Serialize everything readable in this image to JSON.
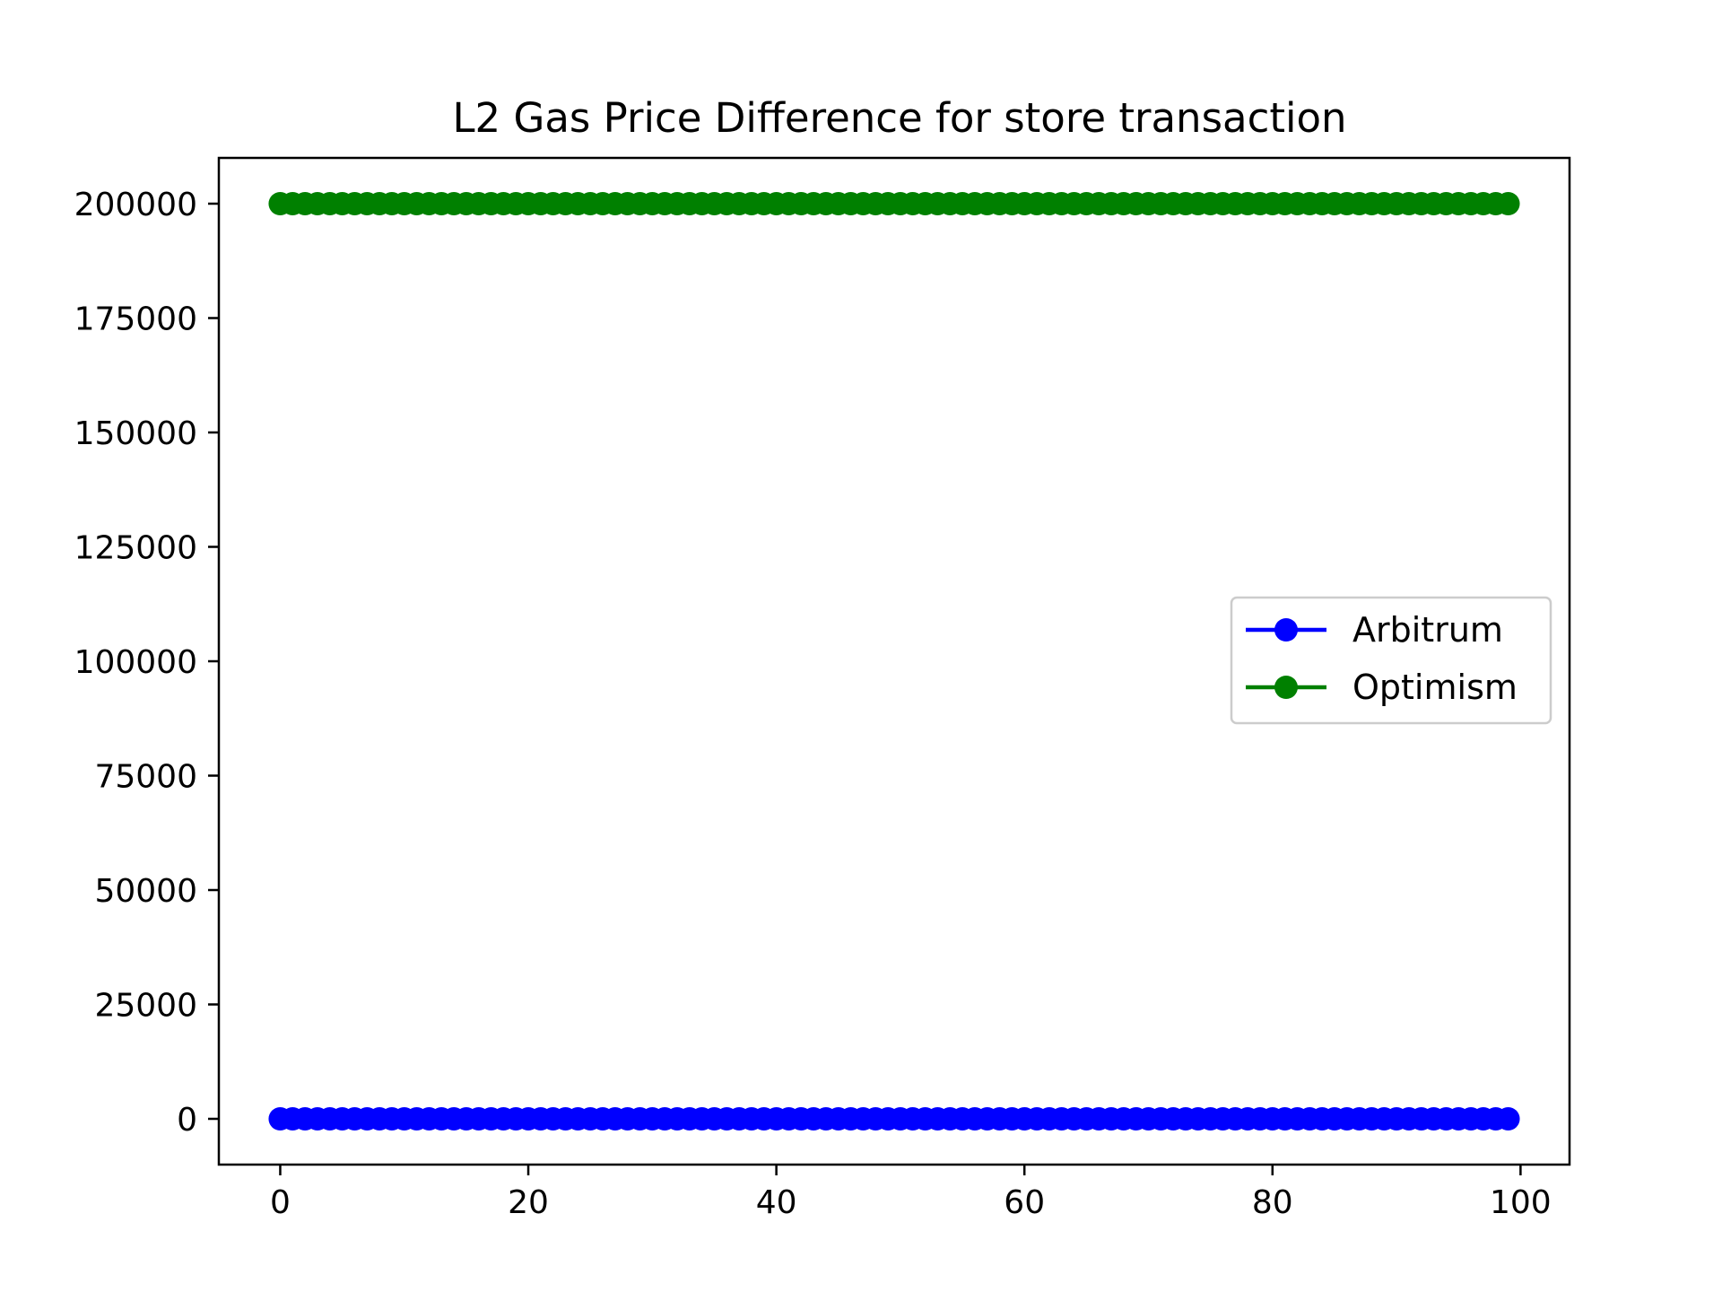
{
  "chart_data": {
    "type": "line",
    "title": "L2 Gas Price Difference for store transaction",
    "xlabel": "",
    "ylabel": "",
    "xlim": [
      -4.95,
      103.95
    ],
    "ylim": [
      -10000,
      210000
    ],
    "x_ticks": [
      0,
      20,
      40,
      60,
      80,
      100
    ],
    "y_ticks": [
      0,
      25000,
      50000,
      75000,
      100000,
      125000,
      150000,
      175000,
      200000
    ],
    "x_start": 0,
    "x_end": 99,
    "grid": false,
    "legend_position": "center right",
    "series": [
      {
        "name": "Arbitrum",
        "color": "#0000ff",
        "marker": "circle",
        "constant_value": 0
      },
      {
        "name": "Optimism",
        "color": "#008000",
        "marker": "circle",
        "constant_value": 200000
      }
    ]
  }
}
